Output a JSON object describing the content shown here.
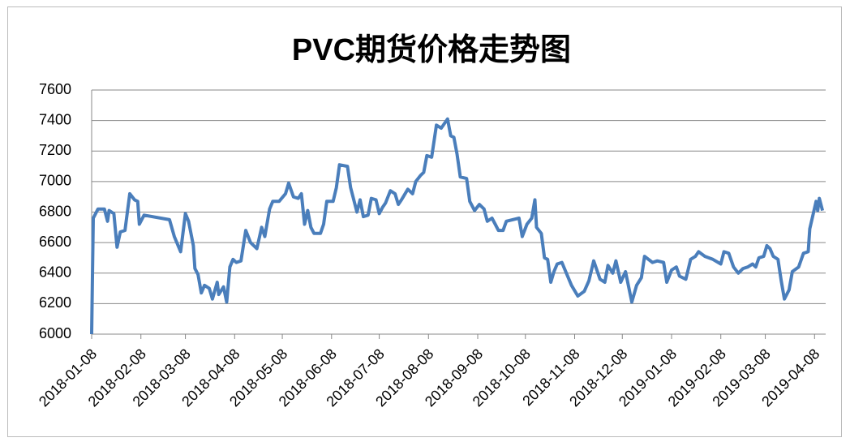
{
  "chart_data": {
    "type": "line",
    "title": "PVC期货价格走势图",
    "x": [
      "2018-01-08",
      "2018-01-09",
      "2018-01-12",
      "2018-01-16",
      "2018-01-18",
      "2018-01-19",
      "2018-01-22",
      "2018-01-24",
      "2018-01-26",
      "2018-01-29",
      "2018-02-01",
      "2018-02-04",
      "2018-02-06",
      "2018-02-07",
      "2018-02-10",
      "2018-02-26",
      "2018-03-01",
      "2018-03-05",
      "2018-03-08",
      "2018-03-10",
      "2018-03-13",
      "2018-03-14",
      "2018-03-16",
      "2018-03-18",
      "2018-03-20",
      "2018-03-23",
      "2018-03-25",
      "2018-03-28",
      "2018-03-29",
      "2018-04-01",
      "2018-04-03",
      "2018-04-05",
      "2018-04-07",
      "2018-04-09",
      "2018-04-12",
      "2018-04-15",
      "2018-04-18",
      "2018-04-22",
      "2018-04-25",
      "2018-04-27",
      "2018-04-30",
      "2018-05-02",
      "2018-05-06",
      "2018-05-10",
      "2018-05-12",
      "2018-05-15",
      "2018-05-18",
      "2018-05-20",
      "2018-05-22",
      "2018-05-24",
      "2018-05-26",
      "2018-05-28",
      "2018-06-01",
      "2018-06-03",
      "2018-06-05",
      "2018-06-09",
      "2018-06-11",
      "2018-06-13",
      "2018-06-18",
      "2018-06-20",
      "2018-06-24",
      "2018-06-26",
      "2018-06-28",
      "2018-07-01",
      "2018-07-03",
      "2018-07-06",
      "2018-07-08",
      "2018-07-10",
      "2018-07-12",
      "2018-07-15",
      "2018-07-18",
      "2018-07-20",
      "2018-07-22",
      "2018-07-26",
      "2018-07-29",
      "2018-07-31",
      "2018-08-03",
      "2018-08-05",
      "2018-08-07",
      "2018-08-10",
      "2018-08-13",
      "2018-08-16",
      "2018-08-18",
      "2018-08-20",
      "2018-08-22",
      "2018-08-24",
      "2018-08-26",
      "2018-08-28",
      "2018-09-01",
      "2018-09-03",
      "2018-09-06",
      "2018-09-09",
      "2018-09-12",
      "2018-09-14",
      "2018-09-17",
      "2018-09-19",
      "2018-09-21",
      "2018-09-24",
      "2018-09-26",
      "2018-10-04",
      "2018-10-06",
      "2018-10-09",
      "2018-10-12",
      "2018-10-14",
      "2018-10-15",
      "2018-10-18",
      "2018-10-20",
      "2018-10-22",
      "2018-10-24",
      "2018-10-26",
      "2018-10-28",
      "2018-10-31",
      "2018-11-02",
      "2018-11-06",
      "2018-11-10",
      "2018-11-14",
      "2018-11-17",
      "2018-11-20",
      "2018-11-24",
      "2018-11-27",
      "2018-11-29",
      "2018-12-02",
      "2018-12-04",
      "2018-12-07",
      "2018-12-10",
      "2018-12-14",
      "2018-12-17",
      "2018-12-20",
      "2018-12-22",
      "2018-12-27",
      "2018-12-30",
      "2019-01-03",
      "2019-01-05",
      "2019-01-08",
      "2019-01-11",
      "2019-01-13",
      "2019-01-17",
      "2019-01-20",
      "2019-01-23",
      "2019-01-25",
      "2019-01-29",
      "2019-02-03",
      "2019-02-08",
      "2019-02-10",
      "2019-02-13",
      "2019-02-16",
      "2019-02-19",
      "2019-02-22",
      "2019-02-25",
      "2019-02-28",
      "2019-03-02",
      "2019-03-04",
      "2019-03-07",
      "2019-03-09",
      "2019-03-11",
      "2019-03-13",
      "2019-03-16",
      "2019-03-18",
      "2019-03-20",
      "2019-03-23",
      "2019-03-25",
      "2019-03-29",
      "2019-04-01",
      "2019-04-04",
      "2019-04-05",
      "2019-04-07",
      "2019-04-09",
      "2019-04-10",
      "2019-04-11",
      "2019-04-13"
    ],
    "series": [
      {
        "name": "PVC",
        "color": "#4a7ebb",
        "values": [
          6000,
          6760,
          6820,
          6820,
          6740,
          6810,
          6790,
          6570,
          6670,
          6680,
          6920,
          6880,
          6870,
          6720,
          6780,
          6750,
          6640,
          6540,
          6790,
          6740,
          6580,
          6430,
          6390,
          6270,
          6320,
          6300,
          6230,
          6340,
          6260,
          6310,
          6210,
          6440,
          6490,
          6470,
          6480,
          6680,
          6600,
          6560,
          6700,
          6640,
          6820,
          6870,
          6870,
          6920,
          6990,
          6900,
          6890,
          6920,
          6720,
          6810,
          6700,
          6660,
          6660,
          6720,
          6870,
          6870,
          6960,
          7110,
          7100,
          6960,
          6800,
          6880,
          6770,
          6780,
          6890,
          6880,
          6790,
          6830,
          6860,
          6940,
          6920,
          6850,
          6880,
          6950,
          6920,
          7000,
          7040,
          7060,
          7170,
          7160,
          7370,
          7350,
          7380,
          7410,
          7300,
          7290,
          7180,
          7030,
          7020,
          6870,
          6810,
          6850,
          6820,
          6740,
          6760,
          6720,
          6680,
          6680,
          6740,
          6760,
          6640,
          6720,
          6760,
          6880,
          6700,
          6660,
          6500,
          6490,
          6340,
          6410,
          6460,
          6470,
          6420,
          6320,
          6250,
          6280,
          6350,
          6480,
          6360,
          6340,
          6450,
          6400,
          6480,
          6340,
          6410,
          6210,
          6320,
          6370,
          6510,
          6470,
          6480,
          6470,
          6340,
          6420,
          6440,
          6380,
          6360,
          6490,
          6510,
          6540,
          6510,
          6490,
          6460,
          6540,
          6530,
          6440,
          6400,
          6430,
          6440,
          6460,
          6440,
          6500,
          6510,
          6580,
          6560,
          6510,
          6490,
          6350,
          6230,
          6290,
          6410,
          6440,
          6530,
          6540,
          6690,
          6780,
          6870,
          6810,
          6890,
          6810
        ]
      }
    ],
    "xlim": [
      "2018-01-08",
      "2019-04-15"
    ],
    "xticks": [
      "2018-01-08",
      "2018-02-08",
      "2018-03-08",
      "2018-04-08",
      "2018-05-08",
      "2018-06-08",
      "2018-07-08",
      "2018-08-08",
      "2018-09-08",
      "2018-10-08",
      "2018-11-08",
      "2018-12-08",
      "2019-01-08",
      "2019-02-08",
      "2019-03-08",
      "2019-04-08"
    ],
    "ylim": [
      6000,
      7600
    ],
    "yticks": [
      6000,
      6200,
      6400,
      6600,
      6800,
      7000,
      7200,
      7400,
      7600
    ],
    "grid": true
  }
}
